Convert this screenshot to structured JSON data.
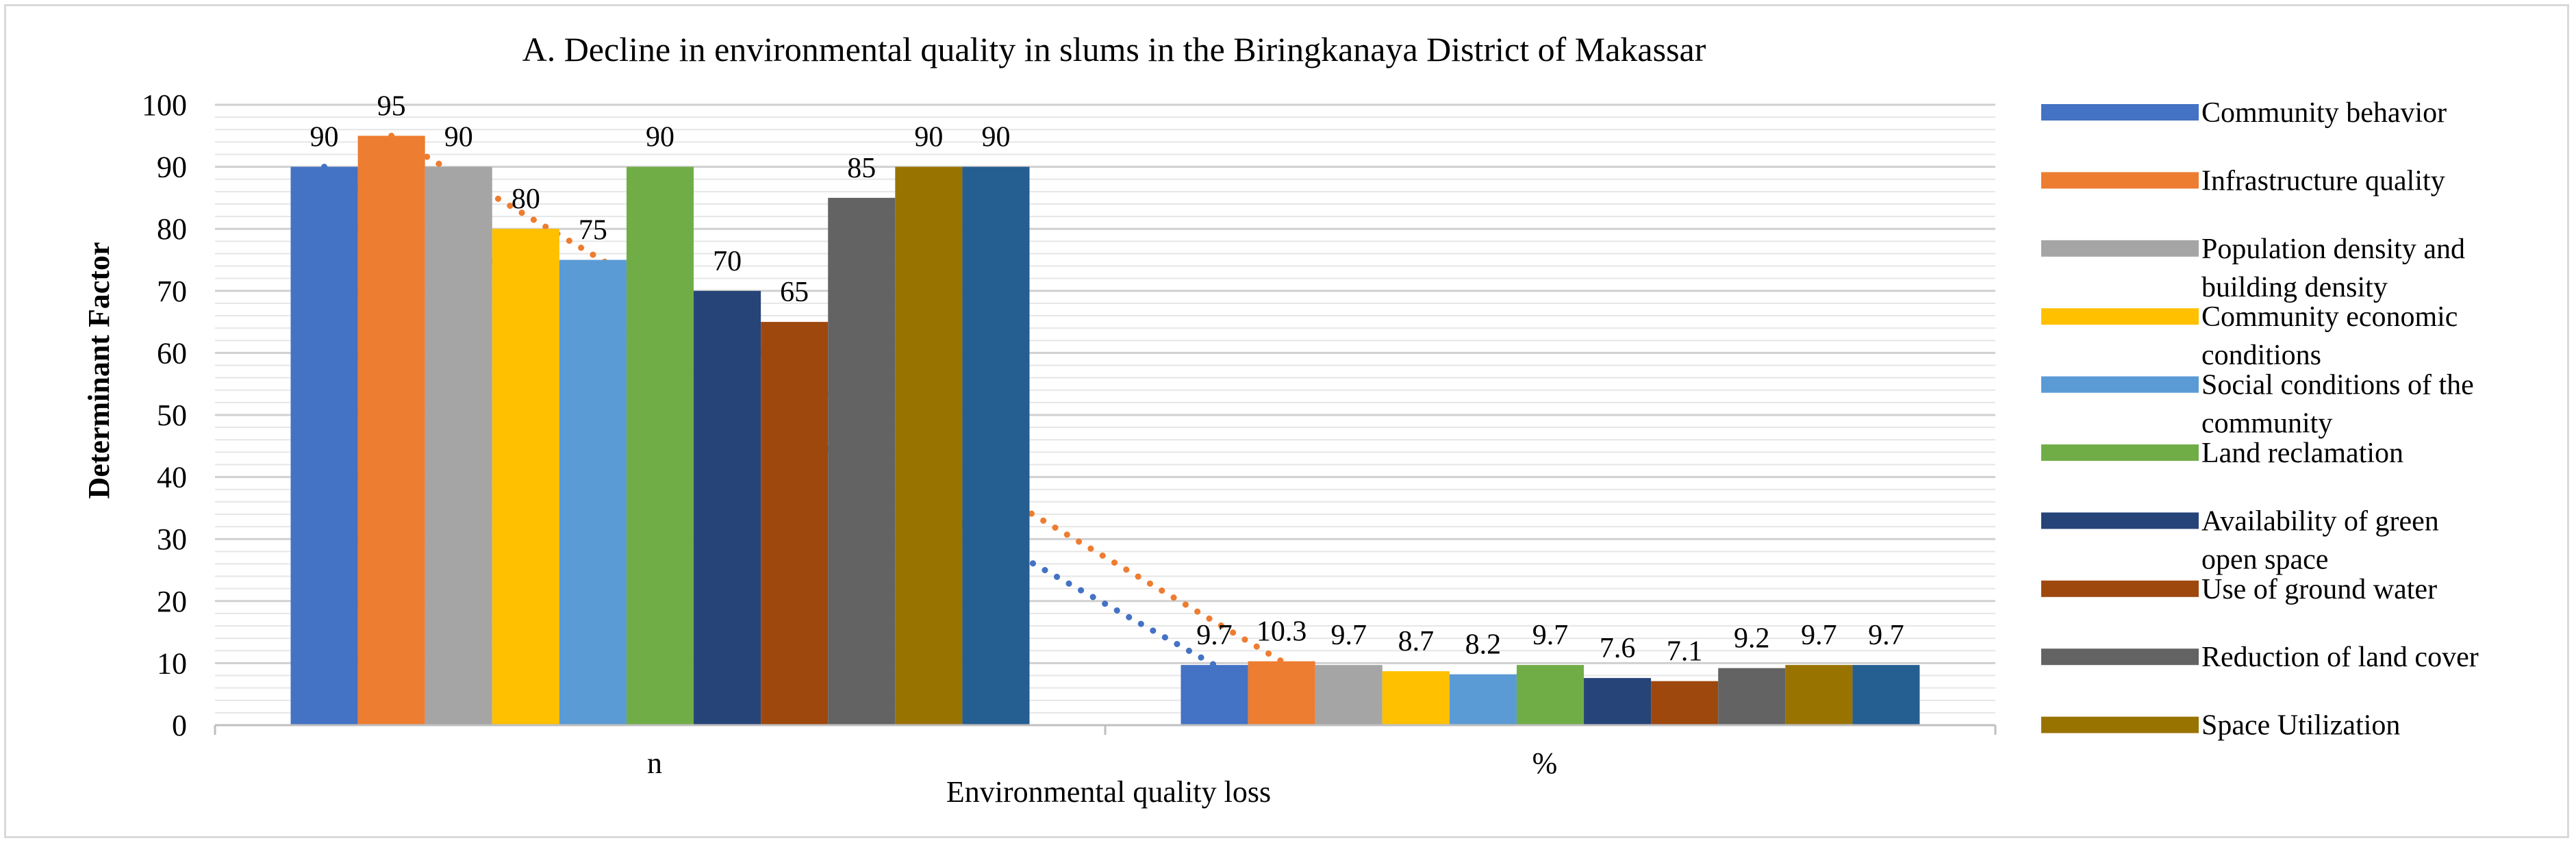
{
  "chart_data": {
    "type": "bar",
    "title": "A. Decline in environmental quality in slums in the Biringkanaya District of Makassar",
    "xlabel": "Environmental quality loss",
    "ylabel": "Determinant Factor",
    "ylim": [
      0,
      100
    ],
    "yticks": [
      0,
      10,
      20,
      30,
      40,
      50,
      60,
      70,
      80,
      90,
      100
    ],
    "grid": true,
    "legend_position": "right",
    "categories": [
      "n",
      "%"
    ],
    "series": [
      {
        "name": "Community behavior",
        "values": [
          90,
          9.7
        ],
        "labels": [
          "90",
          "9.7"
        ],
        "color": "#4472C4"
      },
      {
        "name": "Infrastructure quality",
        "values": [
          95,
          10.3
        ],
        "labels": [
          "95",
          "10.3"
        ],
        "color": "#ED7D31"
      },
      {
        "name": "Population density and building density",
        "values": [
          90,
          9.7
        ],
        "labels": [
          "90",
          "9.7"
        ],
        "color": "#A5A5A5"
      },
      {
        "name": "Community economic conditions",
        "values": [
          80,
          8.7
        ],
        "labels": [
          "80",
          "8.7"
        ],
        "color": "#FFC000"
      },
      {
        "name": "Social conditions of the community",
        "values": [
          75,
          8.2
        ],
        "labels": [
          "75",
          "8.2"
        ],
        "color": "#5B9BD5"
      },
      {
        "name": "Land reclamation",
        "values": [
          90,
          9.7
        ],
        "labels": [
          "90",
          "9.7"
        ],
        "color": "#70AD47"
      },
      {
        "name": "Availability of green open space",
        "values": [
          70,
          7.6
        ],
        "labels": [
          "70",
          "7.6"
        ],
        "color": "#264478"
      },
      {
        "name": "Use of ground water",
        "values": [
          65,
          7.1
        ],
        "labels": [
          "65",
          "7.1"
        ],
        "color": "#9E480E"
      },
      {
        "name": "Reduction of land cover",
        "values": [
          85,
          9.2
        ],
        "labels": [
          "85",
          "9.2"
        ],
        "color": "#636363"
      },
      {
        "name": "Space Utilization",
        "values": [
          90,
          9.7
        ],
        "labels": [
          "90",
          "9.7"
        ],
        "color": "#997300"
      },
      {
        "values": [
          90,
          9.7
        ],
        "labels": [
          "90",
          "9.7"
        ],
        "color": "#255E91"
      }
    ],
    "legend_entries": [
      [
        "Community behavior"
      ],
      [
        "Infrastructure quality"
      ],
      [
        "Population density and",
        "building density"
      ],
      [
        "Community economic",
        "conditions"
      ],
      [
        "Social conditions of the",
        "community"
      ],
      [
        "Land reclamation"
      ],
      [
        "Availability of green",
        "open space"
      ],
      [
        "Use of ground water"
      ],
      [
        "Reduction of land cover"
      ],
      [
        "Space Utilization"
      ]
    ],
    "trendlines": [
      {
        "type": "linear",
        "series_index": 0,
        "color": "#4472C4",
        "style": "dotted"
      },
      {
        "type": "linear",
        "series_index": 1,
        "color": "#ED7D31",
        "style": "dotted"
      }
    ]
  }
}
